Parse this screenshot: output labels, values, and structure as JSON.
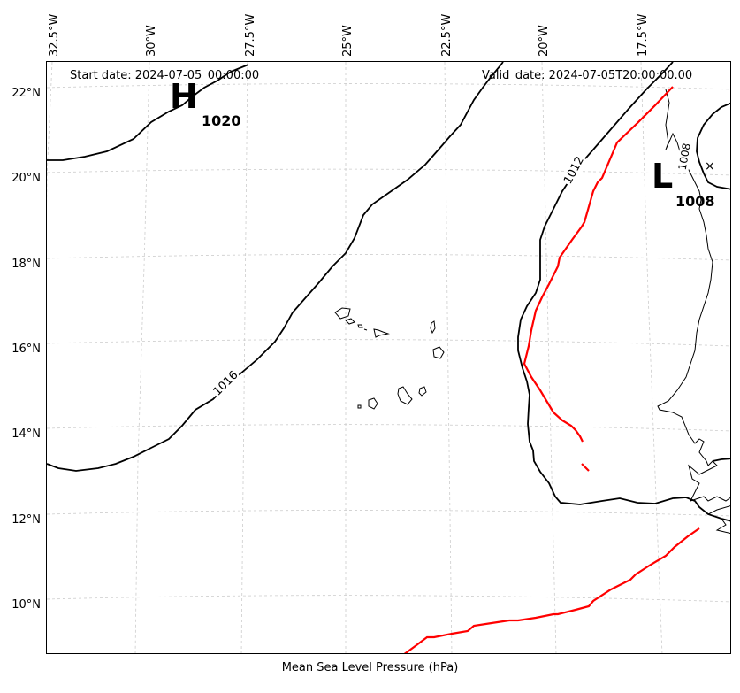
{
  "map": {
    "start_date": "Start date: 2024-07-05_00:00:00",
    "valid_date": "Valid_date: 2024-07-05T20:00:00.00",
    "xlabel": "Mean Sea Level Pressure (hPa)",
    "lon_ticks": [
      "32.5°W",
      "30°W",
      "27.5°W",
      "25°W",
      "22.5°W",
      "20°W",
      "17.5°W"
    ],
    "lat_ticks": [
      "22°N",
      "20°N",
      "18°N",
      "16°N",
      "14°N",
      "12°N",
      "10°N"
    ],
    "high": {
      "letter": "H",
      "value": "1020"
    },
    "low": {
      "letter": "L",
      "value": "1008"
    },
    "contour_labels": [
      "1016",
      "1012",
      "1008"
    ],
    "marker": "×",
    "colors": {
      "contour": "#000000",
      "front": "#ff0000",
      "grid": "#cccccc"
    }
  }
}
